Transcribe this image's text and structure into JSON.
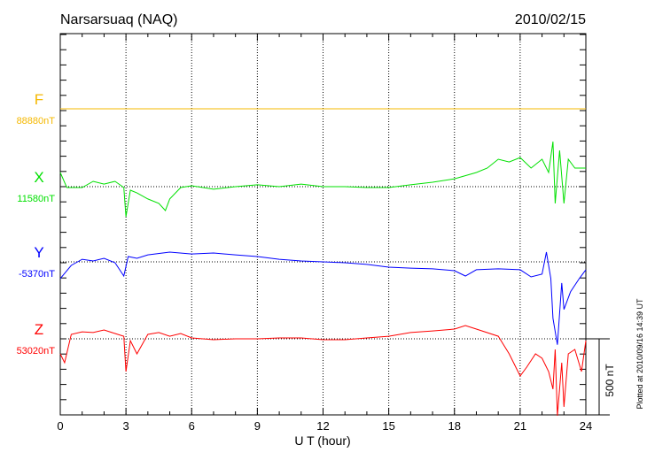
{
  "chart_data": {
    "type": "line",
    "title": "Narsarsuaq (NAQ)",
    "date": "2010/02/15",
    "xlabel": "U T (hour)",
    "xlim": [
      0,
      24
    ],
    "xticks": [
      "0",
      "3",
      "6",
      "9",
      "12",
      "15",
      "18",
      "21",
      "24"
    ],
    "scale_label": "500 nT",
    "scale_nT": 500,
    "footer": "Plotted at 2010/09/16 14:39 UT",
    "series": [
      {
        "name": "F",
        "baseline_label": "88880nT",
        "color": "#f5b800",
        "points": [
          [
            0,
            0
          ],
          [
            24,
            0
          ]
        ]
      },
      {
        "name": "X",
        "baseline_label": "11580nT",
        "color": "#00e000",
        "points": [
          [
            0,
            93
          ],
          [
            0.3,
            -6
          ],
          [
            1,
            -6
          ],
          [
            1.5,
            35
          ],
          [
            2,
            17
          ],
          [
            2.5,
            35
          ],
          [
            2.9,
            -6
          ],
          [
            3.0,
            -197
          ],
          [
            3.2,
            -23
          ],
          [
            3.5,
            -41
          ],
          [
            4,
            -81
          ],
          [
            4.5,
            -110
          ],
          [
            4.8,
            -157
          ],
          [
            5,
            -81
          ],
          [
            5.5,
            -6
          ],
          [
            6,
            6
          ],
          [
            7,
            -17
          ],
          [
            8,
            0
          ],
          [
            9,
            12
          ],
          [
            10,
            0
          ],
          [
            11,
            17
          ],
          [
            12,
            0
          ],
          [
            13,
            0
          ],
          [
            14,
            -6
          ],
          [
            15,
            -6
          ],
          [
            16,
            12
          ],
          [
            17,
            29
          ],
          [
            18,
            52
          ],
          [
            19,
            93
          ],
          [
            19.5,
            122
          ],
          [
            20,
            180
          ],
          [
            20.5,
            162
          ],
          [
            21,
            191
          ],
          [
            21.5,
            122
          ],
          [
            22,
            180
          ],
          [
            22.3,
            93
          ],
          [
            22.5,
            296
          ],
          [
            22.6,
            -110
          ],
          [
            22.8,
            238
          ],
          [
            23,
            -110
          ],
          [
            23.2,
            180
          ],
          [
            23.5,
            122
          ],
          [
            24,
            122
          ]
        ]
      },
      {
        "name": "Y",
        "baseline_label": "-5370nT",
        "color": "#0000ff",
        "points": [
          [
            0,
            -110
          ],
          [
            0.5,
            -23
          ],
          [
            1,
            17
          ],
          [
            1.5,
            6
          ],
          [
            2,
            23
          ],
          [
            2.5,
            -6
          ],
          [
            2.9,
            -93
          ],
          [
            3.1,
            35
          ],
          [
            3.5,
            23
          ],
          [
            4,
            46
          ],
          [
            5,
            64
          ],
          [
            6,
            52
          ],
          [
            7,
            58
          ],
          [
            8,
            46
          ],
          [
            9,
            35
          ],
          [
            10,
            17
          ],
          [
            11,
            6
          ],
          [
            12,
            0
          ],
          [
            13,
            -6
          ],
          [
            14,
            -17
          ],
          [
            15,
            -35
          ],
          [
            16,
            -41
          ],
          [
            17,
            -46
          ],
          [
            18,
            -58
          ],
          [
            18.5,
            -93
          ],
          [
            19,
            -52
          ],
          [
            20,
            -46
          ],
          [
            21,
            -52
          ],
          [
            21.5,
            -99
          ],
          [
            22,
            -81
          ],
          [
            22.2,
            64
          ],
          [
            22.4,
            -110
          ],
          [
            22.5,
            -371
          ],
          [
            22.7,
            -545
          ],
          [
            22.9,
            -139
          ],
          [
            23,
            -313
          ],
          [
            23.3,
            -197
          ],
          [
            23.7,
            -110
          ],
          [
            24,
            -52
          ]
        ]
      },
      {
        "name": "Z",
        "baseline_label": "53020nT",
        "color": "#ff0000",
        "points": [
          [
            0,
            -99
          ],
          [
            0.2,
            -157
          ],
          [
            0.5,
            29
          ],
          [
            1,
            46
          ],
          [
            1.5,
            41
          ],
          [
            2,
            58
          ],
          [
            2.5,
            35
          ],
          [
            2.9,
            17
          ],
          [
            3.0,
            -215
          ],
          [
            3.2,
            -12
          ],
          [
            3.5,
            -99
          ],
          [
            4,
            29
          ],
          [
            4.5,
            41
          ],
          [
            5,
            17
          ],
          [
            5.5,
            35
          ],
          [
            6,
            6
          ],
          [
            7,
            -6
          ],
          [
            8,
            0
          ],
          [
            9,
            0
          ],
          [
            10,
            6
          ],
          [
            11,
            6
          ],
          [
            12,
            -6
          ],
          [
            13,
            -6
          ],
          [
            14,
            6
          ],
          [
            15,
            17
          ],
          [
            16,
            41
          ],
          [
            17,
            52
          ],
          [
            18,
            64
          ],
          [
            18.5,
            87
          ],
          [
            19,
            64
          ],
          [
            20,
            17
          ],
          [
            20.5,
            -99
          ],
          [
            21,
            -244
          ],
          [
            21.3,
            -186
          ],
          [
            21.7,
            -99
          ],
          [
            22,
            -128
          ],
          [
            22.3,
            -215
          ],
          [
            22.5,
            -331
          ],
          [
            22.6,
            -70
          ],
          [
            22.7,
            -505
          ],
          [
            22.9,
            -157
          ],
          [
            23,
            -447
          ],
          [
            23.2,
            -99
          ],
          [
            23.5,
            -70
          ],
          [
            23.8,
            -215
          ],
          [
            24,
            -12
          ]
        ]
      }
    ]
  }
}
